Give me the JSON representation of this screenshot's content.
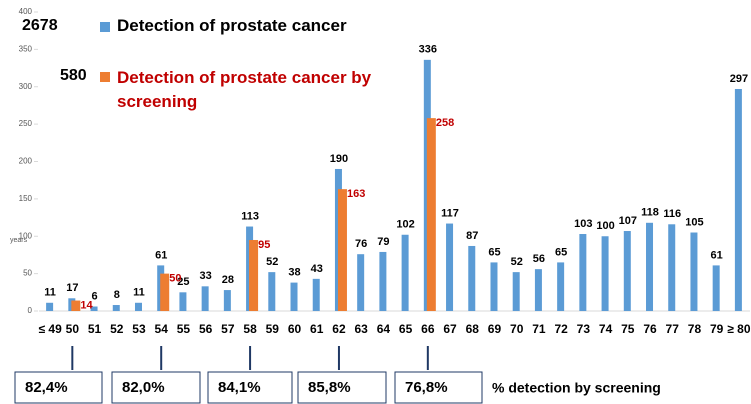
{
  "chart_data": {
    "type": "bar",
    "y_label": "years",
    "categories": [
      "≤ 49",
      "50",
      "51",
      "52",
      "53",
      "54",
      "55",
      "56",
      "57",
      "58",
      "59",
      "60",
      "61",
      "62",
      "63",
      "64",
      "65",
      "66",
      "67",
      "68",
      "69",
      "70",
      "71",
      "72",
      "73",
      "74",
      "75",
      "76",
      "77",
      "78",
      "79",
      "≥ 80"
    ],
    "series": [
      {
        "name": "Detection of prostate cancer",
        "total": 2678,
        "color": "#5b9bd5",
        "values": [
          11,
          17,
          6,
          8,
          11,
          61,
          25,
          33,
          28,
          113,
          52,
          38,
          43,
          190,
          76,
          79,
          102,
          336,
          117,
          87,
          65,
          52,
          56,
          65,
          103,
          100,
          107,
          118,
          116,
          105,
          61,
          297
        ]
      },
      {
        "name": "Detection of prostate cancer by screening",
        "total": 580,
        "color": "#ed7d31",
        "values": [
          null,
          14,
          null,
          null,
          null,
          50,
          null,
          null,
          null,
          95,
          null,
          null,
          null,
          163,
          null,
          null,
          null,
          258,
          null,
          null,
          null,
          null,
          null,
          null,
          null,
          null,
          null,
          null,
          null,
          null,
          null,
          null
        ]
      }
    ],
    "ylim": [
      0,
      400
    ],
    "yticks": [
      0,
      50,
      100,
      150,
      200,
      250,
      300,
      350,
      400
    ],
    "screening_rates": [
      {
        "category": "50",
        "label": "82,4%"
      },
      {
        "category": "54",
        "label": "82,0%"
      },
      {
        "category": "58",
        "label": "84,1%"
      },
      {
        "category": "62",
        "label": "85,8%"
      },
      {
        "category": "66",
        "label": "76,8%"
      }
    ],
    "screening_rates_label": "% detection by screening"
  }
}
